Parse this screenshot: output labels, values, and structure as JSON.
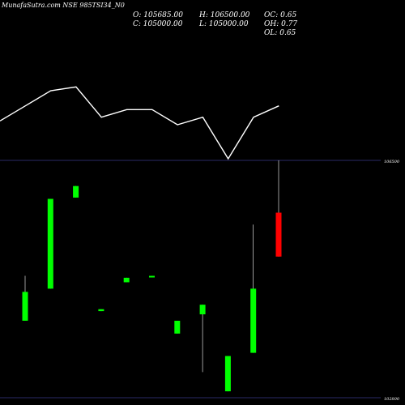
{
  "title": "MunafaSutra.com NSE 985TSI34_N0",
  "ohlc": {
    "o": "O: 105685.00",
    "h": "H: 106500.00",
    "oc": "OC: 0.65",
    "c": "C: 105000.00",
    "l": "L: 105000.00",
    "oh": "OH: 0.77",
    "ol": "OL: 0.65"
  },
  "chart_data": {
    "type": "candlestick",
    "price_axis": {
      "top_label": "106500",
      "bottom_label": "102800",
      "max": 106500,
      "min": 102800
    },
    "candles": [
      {
        "open": 104000,
        "close": 104450,
        "high": 104700,
        "low": 104000,
        "color": "#00ff00"
      },
      {
        "open": 104500,
        "close": 105900,
        "high": 105900,
        "low": 104500,
        "color": "#00ff00"
      },
      {
        "open": 105920,
        "close": 106100,
        "high": 106100,
        "low": 105920,
        "color": "#00ff00"
      },
      {
        "open": 104150,
        "close": 104180,
        "high": 104180,
        "low": 104150,
        "color": "#00ff00"
      },
      {
        "open": 104600,
        "close": 104670,
        "high": 104670,
        "low": 104600,
        "color": "#00ff00"
      },
      {
        "open": 104680,
        "close": 104700,
        "high": 104700,
        "low": 104680,
        "color": "#00ff00"
      },
      {
        "open": 103800,
        "close": 104000,
        "high": 104000,
        "low": 103800,
        "color": "#00ff00"
      },
      {
        "open": 104100,
        "close": 104250,
        "high": 104250,
        "low": 103200,
        "color": "#00ff00"
      },
      {
        "open": 102900,
        "close": 103450,
        "high": 103450,
        "low": 102900,
        "color": "#00ff00"
      },
      {
        "open": 103500,
        "close": 104500,
        "high": 105500,
        "low": 103500,
        "color": "#00ff00"
      },
      {
        "open": 105685,
        "close": 105000,
        "high": 106500,
        "low": 105000,
        "color": "#ff0000"
      }
    ],
    "line": [
      53,
      57,
      61,
      62,
      54,
      56,
      56,
      52,
      54,
      43,
      54,
      57
    ],
    "line_range": [
      40,
      70
    ]
  }
}
